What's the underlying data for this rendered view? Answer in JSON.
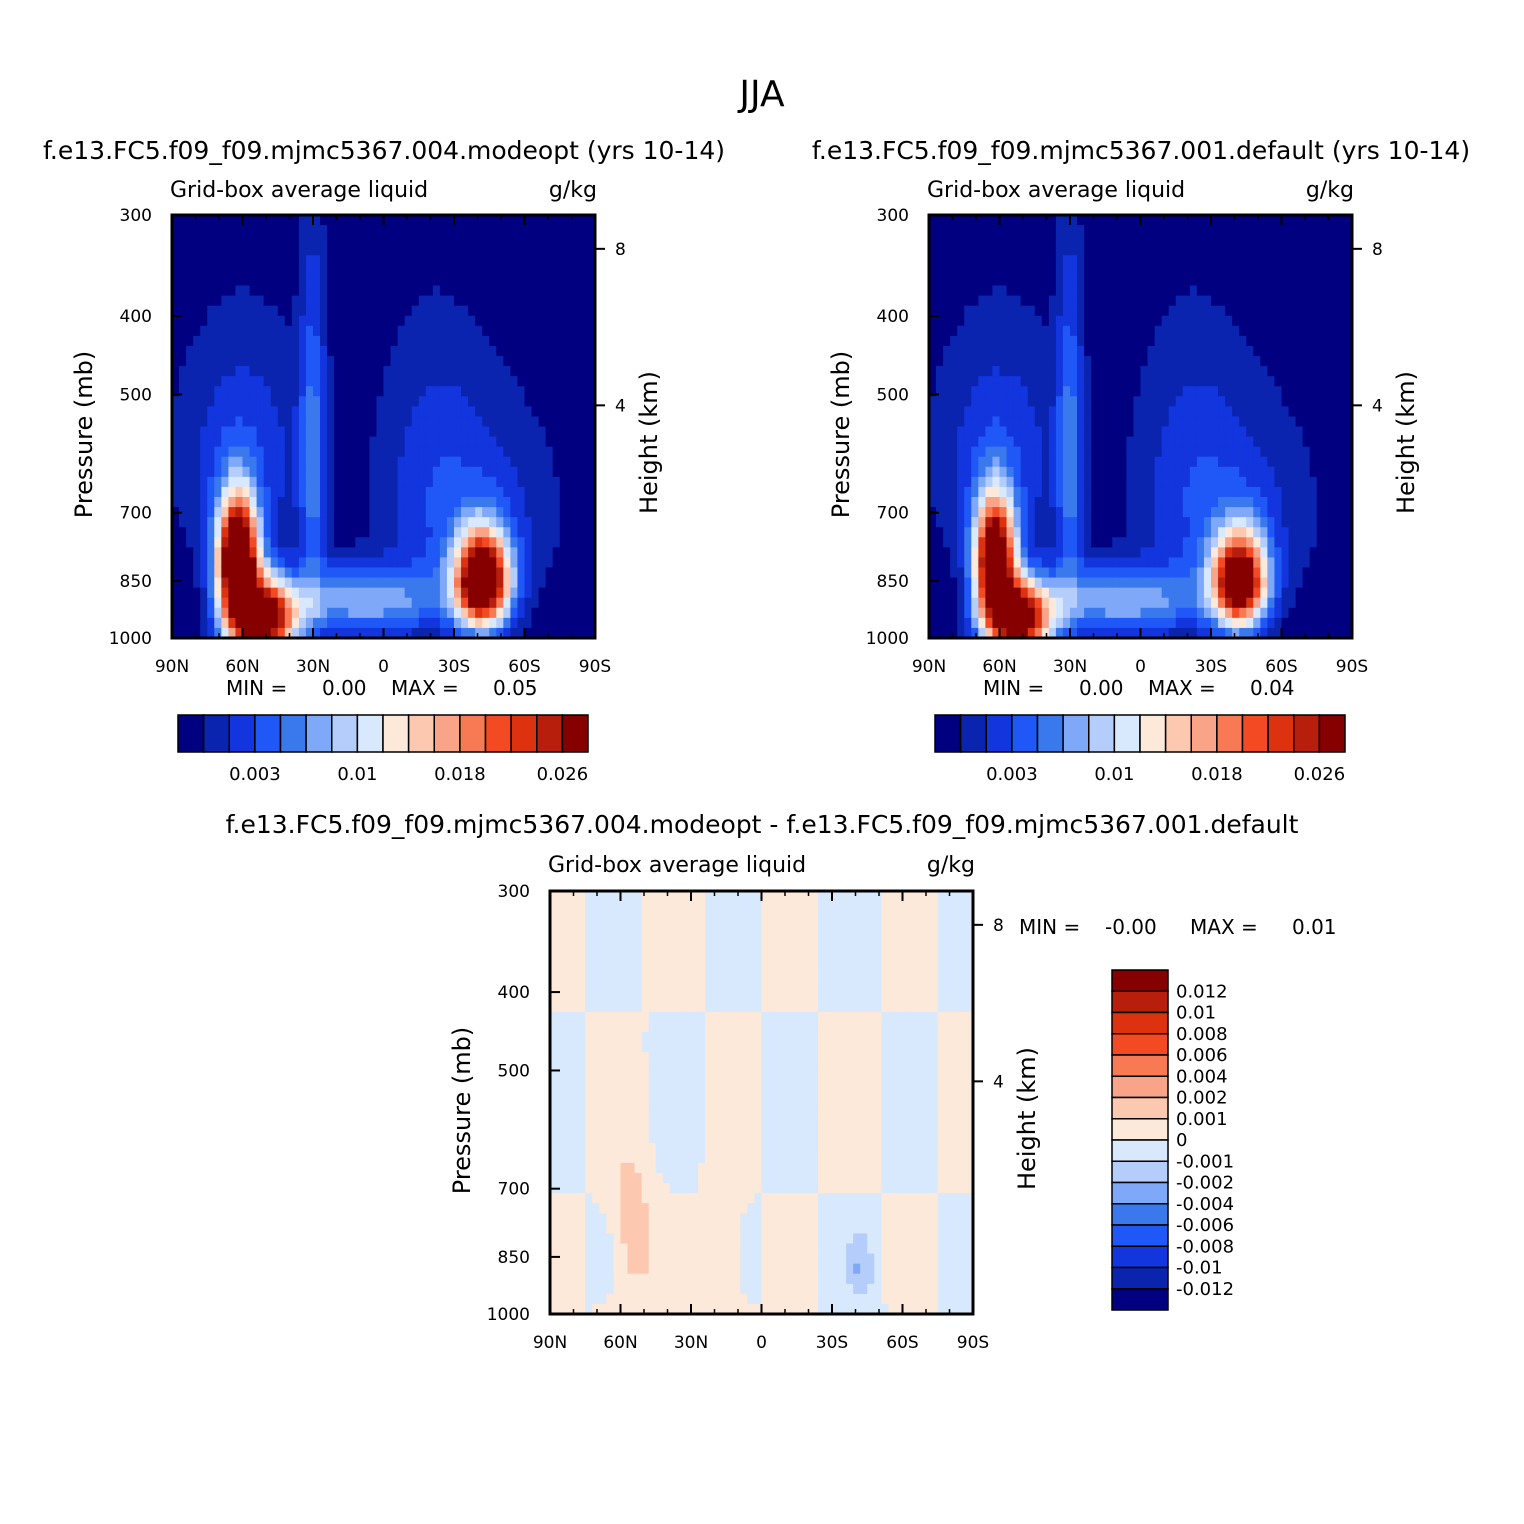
{
  "title": "JJA",
  "panels": [
    {
      "run_title": "f.e13.FC5.f09_f09.mjmc5367.004.modeopt (yrs 10-14)",
      "variable": "Grid-box average liquid",
      "units": "g/kg",
      "min_label": "MIN =",
      "min_value": "0.00",
      "max_label": "MAX =",
      "max_value": "0.05"
    },
    {
      "run_title": "f.e13.FC5.f09_f09.mjmc5367.001.default (yrs 10-14)",
      "variable": "Grid-box average liquid",
      "units": "g/kg",
      "min_label": "MIN =",
      "min_value": "0.00",
      "max_label": "MAX =",
      "max_value": "0.04"
    },
    {
      "run_title": "f.e13.FC5.f09_f09.mjmc5367.004.modeopt - f.e13.FC5.f09_f09.mjmc5367.001.default",
      "variable": "Grid-box average liquid",
      "units": "g/kg",
      "min_label": "MIN =",
      "min_value": "-0.00",
      "max_label": "MAX =",
      "max_value": "0.01"
    }
  ],
  "chart_data": [
    {
      "type": "heatmap",
      "title": "f.e13.FC5.f09_f09.mjmc5367.004.modeopt (yrs 10-14)",
      "xlabel": "",
      "ylabel": "Pressure (mb)",
      "y2label": "Height (km)",
      "x_ticks": [
        "90N",
        "60N",
        "30N",
        "0",
        "30S",
        "60S",
        "90S"
      ],
      "y_ticks": [
        300,
        400,
        500,
        700,
        850,
        1000
      ],
      "y2_ticks": [
        8,
        4
      ],
      "ylim": [
        300,
        1000
      ],
      "contour_levels": [
        0.003,
        0.01,
        0.018,
        0.026
      ],
      "colorbar_labels": [
        "0.003",
        "0.01",
        "0.018",
        "0.026"
      ],
      "min": 0.0,
      "max": 0.05
    },
    {
      "type": "heatmap",
      "title": "f.e13.FC5.f09_f09.mjmc5367.001.default (yrs 10-14)",
      "xlabel": "",
      "ylabel": "Pressure (mb)",
      "y2label": "Height (km)",
      "x_ticks": [
        "90N",
        "60N",
        "30N",
        "0",
        "30S",
        "60S",
        "90S"
      ],
      "y_ticks": [
        300,
        400,
        500,
        700,
        850,
        1000
      ],
      "y2_ticks": [
        8,
        4
      ],
      "ylim": [
        300,
        1000
      ],
      "contour_levels": [
        0.003,
        0.01,
        0.018,
        0.026
      ],
      "colorbar_labels": [
        "0.003",
        "0.01",
        "0.018",
        "0.026"
      ],
      "min": 0.0,
      "max": 0.04
    },
    {
      "type": "heatmap",
      "title": "f.e13.FC5.f09_f09.mjmc5367.004.modeopt - f.e13.FC5.f09_f09.mjmc5367.001.default",
      "xlabel": "",
      "ylabel": "Pressure (mb)",
      "y2label": "Height (km)",
      "x_ticks": [
        "90N",
        "60N",
        "30N",
        "0",
        "30S",
        "60S",
        "90S"
      ],
      "y_ticks": [
        300,
        400,
        500,
        700,
        850,
        1000
      ],
      "y2_ticks": [
        8,
        4
      ],
      "ylim": [
        300,
        1000
      ],
      "colorbar_labels": [
        "0.012",
        "0.01",
        "0.008",
        "0.006",
        "0.004",
        "0.002",
        "0.001",
        "0",
        "-0.001",
        "-0.002",
        "-0.004",
        "-0.006",
        "-0.008",
        "-0.01",
        "-0.012"
      ],
      "min": -0.0,
      "max": 0.01
    }
  ],
  "colors": {
    "sequential": [
      "#000080",
      "#0a24b0",
      "#1335de",
      "#2058f8",
      "#3a78ee",
      "#80a8f8",
      "#b4cdfa",
      "#d8e8fd",
      "#fde9da",
      "#fcc8b0",
      "#f9a488",
      "#f77a54",
      "#f34a24",
      "#dc3210",
      "#b81e0c",
      "#860000"
    ],
    "diff_pos": [
      "#860000",
      "#b81e0c",
      "#dc3210",
      "#f34a24",
      "#f77a54",
      "#f9a488",
      "#fcc8b0",
      "#fde9da"
    ],
    "diff_neg": [
      "#d8e8fd",
      "#b4cdfa",
      "#80a8f8",
      "#3a78ee",
      "#2058f8",
      "#1335de",
      "#0a24b0",
      "#000080"
    ]
  }
}
